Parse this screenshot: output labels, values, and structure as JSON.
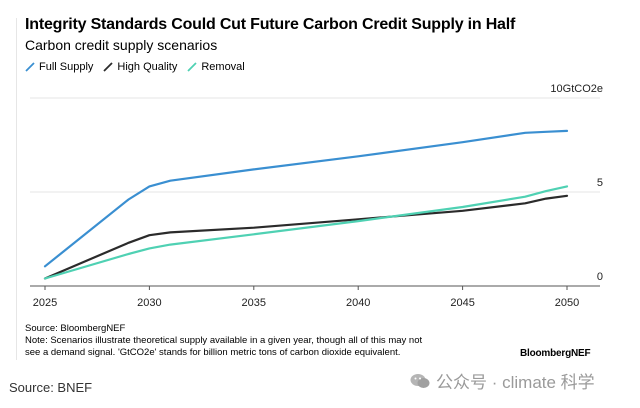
{
  "header": {
    "title": "Integrity Standards Could Cut Future Carbon Credit Supply in Half",
    "subtitle": "Carbon credit supply scenarios"
  },
  "legend": [
    {
      "label": "Full Supply",
      "color": "#3a8fd1"
    },
    {
      "label": "High Quality",
      "color": "#2b2b2b"
    },
    {
      "label": "Removal",
      "color": "#4fd1b3"
    }
  ],
  "chart_data": {
    "type": "line",
    "title": "Integrity Standards Could Cut Future Carbon Credit Supply in Half",
    "subtitle": "Carbon credit supply scenarios",
    "xlabel": "",
    "ylabel": "GtCO2e",
    "x": [
      2025,
      2029,
      2030,
      2031,
      2035,
      2040,
      2045,
      2048,
      2049,
      2050
    ],
    "xlim": [
      2024.2,
      2051.5
    ],
    "ylim": [
      0,
      10
    ],
    "x_ticks": [
      "2025",
      "2030",
      "2035",
      "2040",
      "2045",
      "2050"
    ],
    "y_ticks": [
      "0",
      "5",
      "10GtCO2e"
    ],
    "y_tick_values": [
      0,
      5,
      10
    ],
    "grid": true,
    "legend_position": "top-left",
    "series": [
      {
        "name": "Full Supply",
        "color": "#3a8fd1",
        "values": [
          1.05,
          4.6,
          5.3,
          5.6,
          6.2,
          6.9,
          7.65,
          8.15,
          8.2,
          8.25
        ]
      },
      {
        "name": "High Quality",
        "color": "#2b2b2b",
        "values": [
          0.4,
          2.3,
          2.7,
          2.85,
          3.1,
          3.55,
          4.0,
          4.4,
          4.65,
          4.8
        ]
      },
      {
        "name": "Removal",
        "color": "#4fd1b3",
        "values": [
          0.4,
          1.7,
          2.0,
          2.2,
          2.75,
          3.45,
          4.2,
          4.75,
          5.05,
          5.3
        ]
      }
    ]
  },
  "footer": {
    "source": "Source: BloombergNEF",
    "note": "Note: Scenarios illustrate theoretical supply available in a given year, though all of this may not see a demand signal. 'GtCO2e' stands for billion metric tons of carbon dioxide equivalent.",
    "brand": "BloombergNEF"
  },
  "outer_source": "Source: BNEF",
  "watermark": "公众号 · climate 科学"
}
